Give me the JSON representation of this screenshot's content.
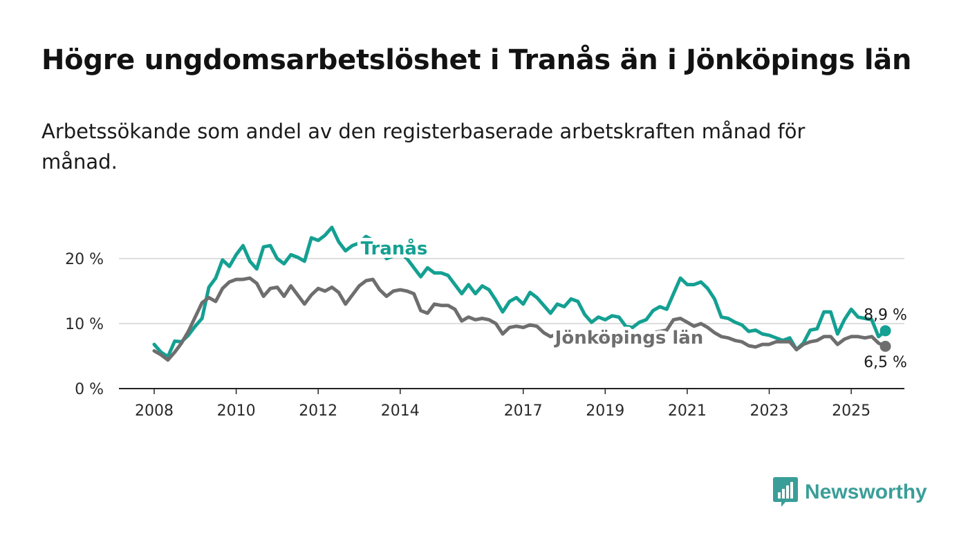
{
  "title": "Högre ungdomsarbetslöshet i Tranås än i Jönköpings län",
  "subtitle": "Arbetssökande som andel av den registerbaserade arbetskraften månad för månad.",
  "logo": {
    "text": "Newsworthy",
    "icon": "bar-chart-speech-bubble-icon",
    "color": "#3a9e98"
  },
  "chart_data": {
    "type": "line",
    "x_ticks": [
      "2008",
      "2010",
      "2012",
      "2014",
      "2017",
      "2019",
      "2021",
      "2023",
      "2025"
    ],
    "y_ticks": [
      "0 %",
      "10 %",
      "20 %"
    ],
    "ylim": [
      0,
      25
    ],
    "grid": true,
    "series": [
      {
        "name": "Tranås",
        "color": "#14a092",
        "end_label": "8,9 %",
        "points": [
          [
            "2008-01",
            6.8
          ],
          [
            "2008-03",
            5.6
          ],
          [
            "2008-05",
            4.9
          ],
          [
            "2008-07",
            7.3
          ],
          [
            "2008-09",
            7.2
          ],
          [
            "2008-11",
            8.2
          ],
          [
            "2009-01",
            9.6
          ],
          [
            "2009-03",
            10.8
          ],
          [
            "2009-05",
            15.6
          ],
          [
            "2009-07",
            17.0
          ],
          [
            "2009-09",
            19.8
          ],
          [
            "2009-11",
            18.8
          ],
          [
            "2010-01",
            20.6
          ],
          [
            "2010-03",
            22.0
          ],
          [
            "2010-05",
            19.6
          ],
          [
            "2010-07",
            18.4
          ],
          [
            "2010-09",
            21.8
          ],
          [
            "2010-11",
            22.0
          ],
          [
            "2011-01",
            20.0
          ],
          [
            "2011-03",
            19.2
          ],
          [
            "2011-05",
            20.6
          ],
          [
            "2011-07",
            20.2
          ],
          [
            "2011-09",
            19.6
          ],
          [
            "2011-11",
            23.2
          ],
          [
            "2012-01",
            22.8
          ],
          [
            "2012-03",
            23.6
          ],
          [
            "2012-05",
            24.8
          ],
          [
            "2012-07",
            22.6
          ],
          [
            "2012-09",
            21.2
          ],
          [
            "2012-11",
            22.0
          ],
          [
            "2013-01",
            22.4
          ],
          [
            "2013-03",
            23.4
          ],
          [
            "2013-05",
            22.8
          ],
          [
            "2013-07",
            21.4
          ],
          [
            "2013-09",
            20.0
          ],
          [
            "2013-11",
            20.4
          ],
          [
            "2014-01",
            20.8
          ],
          [
            "2014-03",
            20.0
          ],
          [
            "2014-05",
            18.6
          ],
          [
            "2014-07",
            17.2
          ],
          [
            "2014-09",
            18.6
          ],
          [
            "2014-11",
            17.8
          ],
          [
            "2015-01",
            17.8
          ],
          [
            "2015-03",
            17.4
          ],
          [
            "2015-05",
            16.0
          ],
          [
            "2015-07",
            14.6
          ],
          [
            "2015-09",
            16.0
          ],
          [
            "2015-11",
            14.6
          ],
          [
            "2016-01",
            15.8
          ],
          [
            "2016-03",
            15.2
          ],
          [
            "2016-05",
            13.6
          ],
          [
            "2016-07",
            11.8
          ],
          [
            "2016-09",
            13.4
          ],
          [
            "2016-11",
            14.0
          ],
          [
            "2017-01",
            13.0
          ],
          [
            "2017-03",
            14.8
          ],
          [
            "2017-05",
            14.0
          ],
          [
            "2017-07",
            12.8
          ],
          [
            "2017-09",
            11.6
          ],
          [
            "2017-11",
            13.0
          ],
          [
            "2018-01",
            12.6
          ],
          [
            "2018-03",
            13.8
          ],
          [
            "2018-05",
            13.4
          ],
          [
            "2018-07",
            11.4
          ],
          [
            "2018-09",
            10.2
          ],
          [
            "2018-11",
            11.0
          ],
          [
            "2019-01",
            10.6
          ],
          [
            "2019-03",
            11.2
          ],
          [
            "2019-05",
            11.0
          ],
          [
            "2019-07",
            9.6
          ],
          [
            "2019-09",
            9.4
          ],
          [
            "2019-11",
            10.2
          ],
          [
            "2020-01",
            10.6
          ],
          [
            "2020-03",
            12.0
          ],
          [
            "2020-05",
            12.6
          ],
          [
            "2020-07",
            12.2
          ],
          [
            "2020-09",
            14.6
          ],
          [
            "2020-11",
            17.0
          ],
          [
            "2021-01",
            16.0
          ],
          [
            "2021-03",
            16.0
          ],
          [
            "2021-05",
            16.4
          ],
          [
            "2021-07",
            15.4
          ],
          [
            "2021-09",
            13.8
          ],
          [
            "2021-11",
            11.0
          ],
          [
            "2022-01",
            10.8
          ],
          [
            "2022-03",
            10.2
          ],
          [
            "2022-05",
            9.8
          ],
          [
            "2022-07",
            8.8
          ],
          [
            "2022-09",
            9.0
          ],
          [
            "2022-11",
            8.4
          ],
          [
            "2023-01",
            8.2
          ],
          [
            "2023-03",
            7.8
          ],
          [
            "2023-05",
            7.4
          ],
          [
            "2023-07",
            7.8
          ],
          [
            "2023-09",
            6.0
          ],
          [
            "2023-11",
            7.0
          ],
          [
            "2024-01",
            9.0
          ],
          [
            "2024-03",
            9.2
          ],
          [
            "2024-05",
            11.8
          ],
          [
            "2024-07",
            11.8
          ],
          [
            "2024-09",
            8.4
          ],
          [
            "2024-11",
            10.6
          ],
          [
            "2025-01",
            12.2
          ],
          [
            "2025-03",
            11.0
          ],
          [
            "2025-05",
            10.8
          ],
          [
            "2025-07",
            10.6
          ],
          [
            "2025-09",
            8.0
          ],
          [
            "2025-11",
            8.9
          ]
        ]
      },
      {
        "name": "Jönköpings län",
        "color": "#6e6e6e",
        "end_label": "6,5 %",
        "points": [
          [
            "2008-01",
            5.8
          ],
          [
            "2008-03",
            5.2
          ],
          [
            "2008-05",
            4.4
          ],
          [
            "2008-07",
            5.6
          ],
          [
            "2008-09",
            7.0
          ],
          [
            "2008-11",
            8.8
          ],
          [
            "2009-01",
            11.0
          ],
          [
            "2009-03",
            13.2
          ],
          [
            "2009-05",
            14.0
          ],
          [
            "2009-07",
            13.4
          ],
          [
            "2009-09",
            15.4
          ],
          [
            "2009-11",
            16.4
          ],
          [
            "2010-01",
            16.8
          ],
          [
            "2010-03",
            16.8
          ],
          [
            "2010-05",
            17.0
          ],
          [
            "2010-07",
            16.2
          ],
          [
            "2010-09",
            14.2
          ],
          [
            "2010-11",
            15.4
          ],
          [
            "2011-01",
            15.6
          ],
          [
            "2011-03",
            14.2
          ],
          [
            "2011-05",
            15.8
          ],
          [
            "2011-07",
            14.4
          ],
          [
            "2011-09",
            13.0
          ],
          [
            "2011-11",
            14.4
          ],
          [
            "2012-01",
            15.4
          ],
          [
            "2012-03",
            15.0
          ],
          [
            "2012-05",
            15.6
          ],
          [
            "2012-07",
            14.8
          ],
          [
            "2012-09",
            13.0
          ],
          [
            "2012-11",
            14.4
          ],
          [
            "2013-01",
            15.8
          ],
          [
            "2013-03",
            16.6
          ],
          [
            "2013-05",
            16.8
          ],
          [
            "2013-07",
            15.2
          ],
          [
            "2013-09",
            14.2
          ],
          [
            "2013-11",
            15.0
          ],
          [
            "2014-01",
            15.2
          ],
          [
            "2014-03",
            15.0
          ],
          [
            "2014-05",
            14.6
          ],
          [
            "2014-07",
            12.0
          ],
          [
            "2014-09",
            11.6
          ],
          [
            "2014-11",
            13.0
          ],
          [
            "2015-01",
            12.8
          ],
          [
            "2015-03",
            12.8
          ],
          [
            "2015-05",
            12.2
          ],
          [
            "2015-07",
            10.4
          ],
          [
            "2015-09",
            11.0
          ],
          [
            "2015-11",
            10.6
          ],
          [
            "2016-01",
            10.8
          ],
          [
            "2016-03",
            10.6
          ],
          [
            "2016-05",
            10.0
          ],
          [
            "2016-07",
            8.4
          ],
          [
            "2016-09",
            9.4
          ],
          [
            "2016-11",
            9.6
          ],
          [
            "2017-01",
            9.4
          ],
          [
            "2017-03",
            9.8
          ],
          [
            "2017-05",
            9.6
          ],
          [
            "2017-07",
            8.6
          ],
          [
            "2017-09",
            8.0
          ],
          [
            "2017-11",
            8.4
          ],
          [
            "2018-01",
            8.4
          ],
          [
            "2018-03",
            8.6
          ],
          [
            "2018-05",
            8.0
          ],
          [
            "2018-07",
            7.0
          ],
          [
            "2018-09",
            6.8
          ],
          [
            "2018-11",
            7.4
          ],
          [
            "2019-01",
            7.4
          ],
          [
            "2019-03",
            7.6
          ],
          [
            "2019-05",
            7.6
          ],
          [
            "2019-07",
            7.0
          ],
          [
            "2019-09",
            7.4
          ],
          [
            "2019-11",
            8.2
          ],
          [
            "2020-01",
            8.2
          ],
          [
            "2020-03",
            8.6
          ],
          [
            "2020-05",
            8.8
          ],
          [
            "2020-07",
            9.0
          ],
          [
            "2020-09",
            10.6
          ],
          [
            "2020-11",
            10.8
          ],
          [
            "2021-01",
            10.2
          ],
          [
            "2021-03",
            9.6
          ],
          [
            "2021-05",
            10.0
          ],
          [
            "2021-07",
            9.4
          ],
          [
            "2021-09",
            8.6
          ],
          [
            "2021-11",
            8.0
          ],
          [
            "2022-01",
            7.8
          ],
          [
            "2022-03",
            7.4
          ],
          [
            "2022-05",
            7.2
          ],
          [
            "2022-07",
            6.6
          ],
          [
            "2022-09",
            6.4
          ],
          [
            "2022-11",
            6.8
          ],
          [
            "2023-01",
            6.8
          ],
          [
            "2023-03",
            7.2
          ],
          [
            "2023-05",
            7.2
          ],
          [
            "2023-07",
            7.2
          ],
          [
            "2023-09",
            6.0
          ],
          [
            "2023-11",
            6.8
          ],
          [
            "2024-01",
            7.2
          ],
          [
            "2024-03",
            7.4
          ],
          [
            "2024-05",
            8.0
          ],
          [
            "2024-07",
            8.0
          ],
          [
            "2024-09",
            6.8
          ],
          [
            "2024-11",
            7.6
          ],
          [
            "2025-01",
            8.0
          ],
          [
            "2025-03",
            8.0
          ],
          [
            "2025-05",
            7.8
          ],
          [
            "2025-07",
            8.0
          ],
          [
            "2025-09",
            7.0
          ],
          [
            "2025-11",
            6.5
          ]
        ]
      }
    ]
  }
}
